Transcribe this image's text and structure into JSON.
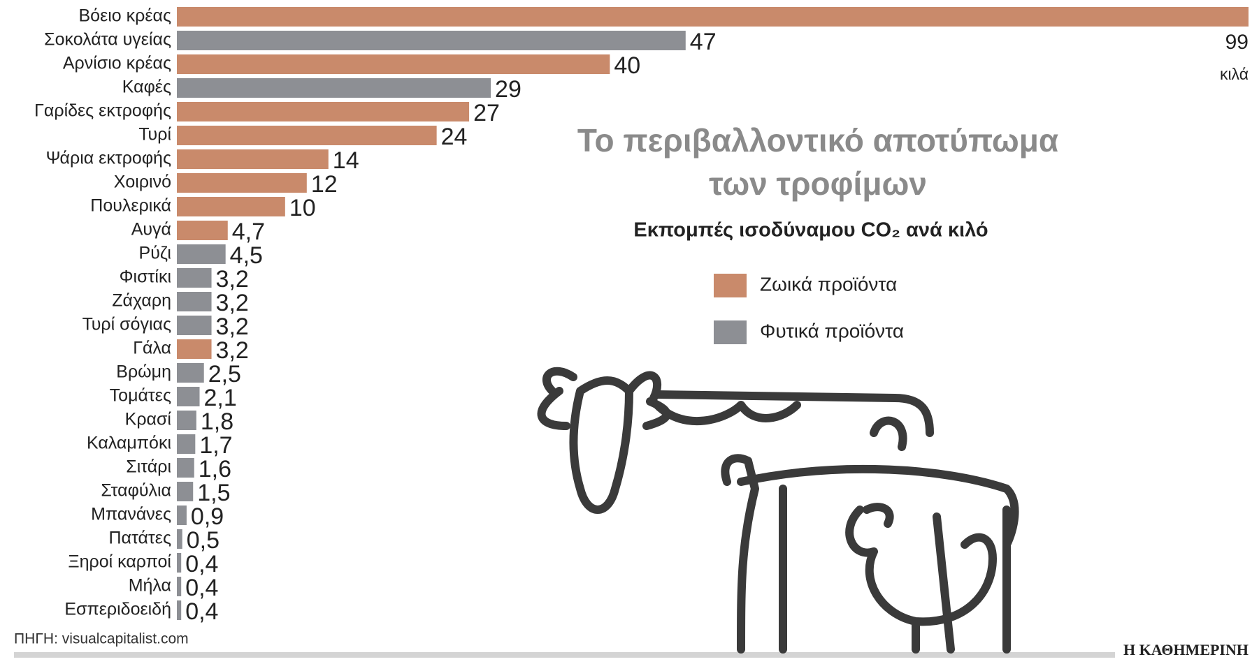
{
  "chart_data": {
    "type": "bar",
    "orientation": "horizontal",
    "title": "Το περιβαλλοντικό αποτύπωμα των τροφίμων",
    "subtitle": "Εκπομπές ισοδύναμου CO₂ ανά κιλό",
    "unit": "κιλά",
    "source": "ΠΗΓΗ: visualcapitalist.com",
    "publisher": "Η ΚΑΘΗΜΕΡΙΝΗ",
    "categories": [
      "Βόειο κρέας",
      "Σοκολάτα υγείας",
      "Αρνίσιο κρέας",
      "Καφές",
      "Γαρίδες εκτροφής",
      "Τυρί",
      "Ψάρια εκτροφής",
      "Χοιρινό",
      "Πουλερικά",
      "Αυγά",
      "Ρύζι",
      "Φιστίκι",
      "Ζάχαρη",
      "Τυρί σόγιας",
      "Γάλα",
      "Βρώμη",
      "Τομάτες",
      "Κρασί",
      "Καλαμπόκι",
      "Σιτάρι",
      "Σταφύλια",
      "Μπανάνες",
      "Πατάτες",
      "Ξηροί καρποί",
      "Μήλα",
      "Εσπεριδοειδή"
    ],
    "series": [
      {
        "name": "Ζωικά προϊόντα",
        "color": "#c98a6b",
        "values": [
          99,
          null,
          40,
          null,
          27,
          24,
          14,
          12,
          10,
          4.7,
          null,
          null,
          null,
          null,
          3.2,
          null,
          null,
          null,
          null,
          null,
          null,
          null,
          null,
          null,
          null,
          null
        ],
        "value_labels": [
          "99",
          null,
          "40",
          null,
          "27",
          "24",
          "14",
          "12",
          "10",
          "4,7",
          null,
          null,
          null,
          null,
          "3,2",
          null,
          null,
          null,
          null,
          null,
          null,
          null,
          null,
          null,
          null,
          null
        ]
      },
      {
        "name": "Φυτικά προϊόντα",
        "color": "#8d8f94",
        "values": [
          null,
          47,
          null,
          29,
          null,
          null,
          null,
          null,
          null,
          null,
          4.5,
          3.2,
          3.2,
          3.2,
          null,
          2.5,
          2.1,
          1.8,
          1.7,
          1.6,
          1.5,
          0.9,
          0.5,
          0.4,
          0.4,
          0.4
        ],
        "value_labels": [
          null,
          "47",
          null,
          "29",
          null,
          null,
          null,
          null,
          null,
          null,
          "4,5",
          "3,2",
          "3,2",
          "3,2",
          null,
          "2,5",
          "2,1",
          "1,8",
          "1,7",
          "1,6",
          "1,5",
          "0,9",
          "0,5",
          "0,4",
          "0,4",
          "0,4"
        ]
      }
    ],
    "xlim": [
      0,
      99
    ]
  }
}
